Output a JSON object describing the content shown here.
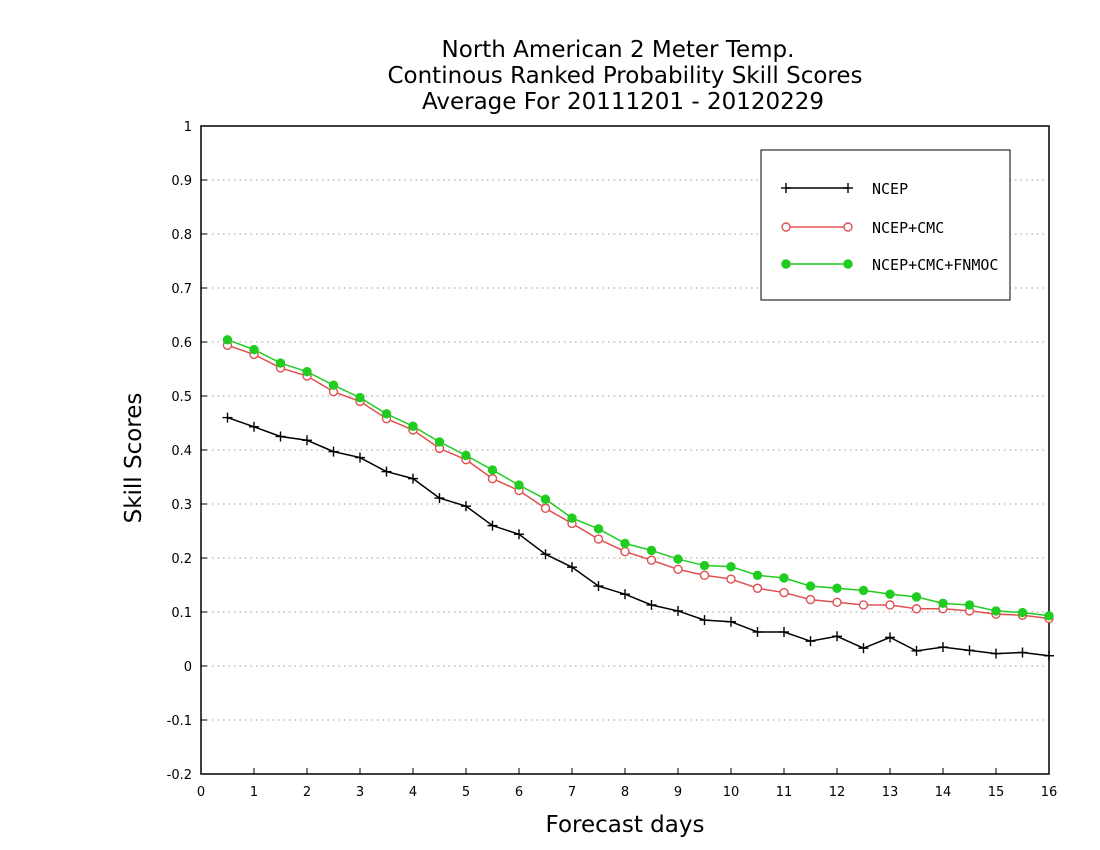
{
  "chart_data": {
    "type": "line",
    "title_lines": [
      "North American 2 Meter Temp.",
      "Continous Ranked Probability Skill Scores",
      "Average For 20111201 - 20120229"
    ],
    "xlabel": "Forecast days",
    "ylabel": "Skill Scores",
    "xlim": [
      0,
      16
    ],
    "ylim": [
      -0.2,
      1
    ],
    "x_ticks": [
      0,
      1,
      2,
      3,
      4,
      5,
      6,
      7,
      8,
      9,
      10,
      11,
      12,
      13,
      14,
      15,
      16
    ],
    "x_tick_labels": [
      "0",
      "1",
      "2",
      "3",
      "4",
      "5",
      "6",
      "7",
      "8",
      "9",
      "10",
      "11",
      "12",
      "13",
      "14",
      "15",
      "16"
    ],
    "y_ticks": [
      -0.2,
      -0.1,
      0,
      0.1,
      0.2,
      0.3,
      0.4,
      0.5,
      0.6,
      0.7,
      0.8,
      0.9,
      1
    ],
    "y_tick_labels": [
      "-0.2",
      "-0.1",
      "0",
      "0.1",
      "0.2",
      "0.3",
      "0.4",
      "0.5",
      "0.6",
      "0.7",
      "0.8",
      "0.9",
      "1"
    ],
    "grid": "horizontal-dotted",
    "legend_position": "top-right",
    "x": [
      0.5,
      1.0,
      1.5,
      2.0,
      2.5,
      3.0,
      3.5,
      4.0,
      4.5,
      5.0,
      5.5,
      6.0,
      6.5,
      7.0,
      7.5,
      8.0,
      8.5,
      9.0,
      9.5,
      10.0,
      10.5,
      11.0,
      11.5,
      12.0,
      12.5,
      13.0,
      13.5,
      14.0,
      14.5,
      15.0,
      15.5,
      16.0
    ],
    "series": [
      {
        "name": "NCEP",
        "color": "#000000",
        "marker": "plus",
        "values": [
          0.46,
          0.443,
          0.425,
          0.418,
          0.397,
          0.386,
          0.36,
          0.347,
          0.311,
          0.296,
          0.26,
          0.244,
          0.207,
          0.183,
          0.148,
          0.133,
          0.113,
          0.102,
          0.085,
          0.082,
          0.063,
          0.063,
          0.046,
          0.055,
          0.033,
          0.053,
          0.028,
          0.035,
          0.029,
          0.023,
          0.025,
          0.019
        ]
      },
      {
        "name": "NCEP+CMC",
        "color": "#e05050",
        "marker": "open-circle",
        "values": [
          0.594,
          0.577,
          0.552,
          0.537,
          0.508,
          0.49,
          0.458,
          0.437,
          0.403,
          0.382,
          0.347,
          0.325,
          0.292,
          0.264,
          0.235,
          0.212,
          0.196,
          0.179,
          0.168,
          0.161,
          0.144,
          0.136,
          0.123,
          0.118,
          0.113,
          0.113,
          0.106,
          0.106,
          0.102,
          0.096,
          0.094,
          0.088
        ]
      },
      {
        "name": "NCEP+CMC+FNMOC",
        "color": "#20cc20",
        "marker": "filled-circle",
        "values": [
          0.604,
          0.586,
          0.561,
          0.545,
          0.52,
          0.497,
          0.467,
          0.444,
          0.415,
          0.39,
          0.363,
          0.335,
          0.309,
          0.274,
          0.254,
          0.227,
          0.214,
          0.198,
          0.186,
          0.184,
          0.168,
          0.163,
          0.148,
          0.144,
          0.14,
          0.133,
          0.128,
          0.116,
          0.113,
          0.102,
          0.099,
          0.093
        ]
      }
    ]
  }
}
